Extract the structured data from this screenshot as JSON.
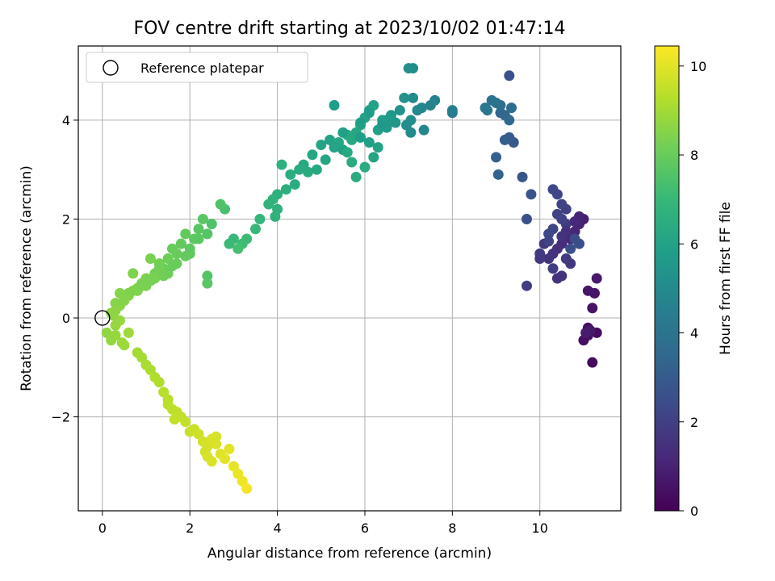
{
  "chart_data": {
    "type": "scatter",
    "title": "FOV centre drift starting at 2023/10/02 01:47:14",
    "xlabel": "Angular distance from reference (arcmin)",
    "ylabel": "Rotation from reference (arcmin)",
    "xlim": [
      -0.55,
      11.85
    ],
    "ylim": [
      -3.9,
      5.5
    ],
    "xticks": [
      0,
      2,
      4,
      6,
      8,
      10
    ],
    "yticks": [
      -2,
      0,
      2,
      4
    ],
    "xtick_labels": [
      "0",
      "2",
      "4",
      "6",
      "8",
      "10"
    ],
    "ytick_labels": [
      "−2",
      "0",
      "2",
      "4"
    ],
    "grid": true,
    "legend": {
      "location": "upper-left",
      "entries": [
        {
          "label": "Reference platepar",
          "marker": "open-circle",
          "color": "#000000"
        }
      ]
    },
    "reference_point": {
      "x": 0,
      "y": 0
    },
    "colorbar": {
      "label": "Hours from first FF file",
      "range": [
        0,
        10.45
      ],
      "ticks": [
        0,
        2,
        4,
        6,
        8,
        10
      ],
      "tick_labels": [
        "0",
        "2",
        "4",
        "6",
        "8",
        "10"
      ],
      "colormap": "viridis"
    },
    "colormap_stops": [
      "#440154",
      "#482878",
      "#3e4989",
      "#31688e",
      "#26828e",
      "#1f9e89",
      "#35b779",
      "#6ece58",
      "#b5de2b",
      "#fde725"
    ],
    "series": [
      {
        "x": [
          11.2,
          11.3,
          11.1,
          11.0,
          11.1,
          11.2,
          11.25,
          11.1,
          11.15,
          11.3,
          11.05
        ],
        "y": [
          -0.9,
          -0.3,
          -0.2,
          -0.45,
          -0.35,
          0.2,
          0.5,
          0.55,
          -0.25,
          0.8,
          -0.3
        ],
        "c": [
          0.3,
          0.35,
          0.4,
          0.45,
          0.5,
          0.55,
          0.6,
          0.65,
          0.7,
          0.75,
          0.8
        ]
      },
      {
        "x": [
          11.0,
          10.9,
          10.8,
          10.7,
          10.5,
          10.4,
          10.3,
          10.2,
          10.1,
          10.0,
          10.6,
          10.5,
          10.4,
          10.3,
          10.2,
          10.8,
          10.9,
          10.7,
          10.6,
          10.5,
          10.4,
          10.3,
          10.6,
          10.7,
          10.5,
          10.4,
          10.3,
          10.2,
          10.9,
          10.6,
          10.5,
          10.8,
          10.0,
          9.7
        ],
        "y": [
          2.0,
          1.9,
          1.75,
          1.6,
          1.5,
          1.4,
          1.3,
          1.2,
          1.5,
          1.3,
          1.9,
          2.0,
          2.1,
          1.8,
          1.7,
          1.6,
          1.5,
          1.4,
          2.2,
          2.3,
          2.5,
          2.6,
          1.2,
          1.1,
          0.85,
          0.8,
          1.0,
          1.55,
          2.05,
          1.75,
          1.65,
          1.95,
          1.2,
          0.65
        ],
        "c": [
          0.9,
          1.0,
          1.1,
          1.2,
          1.3,
          1.4,
          1.5,
          1.6,
          1.7,
          1.8,
          1.9,
          2.0,
          2.1,
          2.2,
          2.3,
          2.4,
          2.5,
          2.6,
          2.0,
          2.1,
          2.2,
          2.3,
          1.8,
          1.7,
          1.6,
          1.5,
          1.9,
          2.1,
          1.0,
          1.4,
          1.6,
          1.2,
          1.75,
          1.9
        ]
      },
      {
        "x": [
          9.7,
          9.8,
          9.6,
          9.4,
          9.3,
          9.2,
          9.0,
          9.05,
          9.1,
          9.2,
          9.3,
          9.35,
          9.1,
          9.0,
          8.9,
          8.8
        ],
        "y": [
          2.0,
          2.5,
          2.85,
          3.55,
          3.65,
          3.6,
          3.25,
          2.9,
          4.15,
          4.1,
          4.0,
          4.25,
          4.3,
          4.35,
          4.4,
          4.2
        ],
        "c": [
          2.6,
          2.7,
          2.8,
          2.9,
          3.0,
          3.1,
          3.2,
          3.3,
          3.4,
          3.5,
          3.6,
          3.7,
          3.8,
          3.9,
          4.0,
          4.1
        ]
      },
      {
        "x": [
          9.3,
          8.75,
          8.0,
          8.0,
          7.6,
          7.5,
          7.3,
          7.2,
          7.1,
          7.1,
          7.0,
          6.9,
          6.8,
          6.7,
          6.6,
          6.5,
          6.4,
          6.3,
          6.2,
          6.1,
          6.0,
          5.9,
          5.8,
          5.7,
          5.6,
          7.35,
          7.05,
          6.95,
          7.05
        ],
        "y": [
          4.9,
          4.25,
          4.15,
          4.2,
          4.4,
          4.3,
          4.25,
          4.2,
          4.45,
          5.05,
          5.05,
          4.45,
          4.2,
          3.95,
          4.1,
          3.85,
          4.0,
          3.8,
          4.3,
          4.2,
          4.05,
          3.9,
          3.75,
          3.6,
          3.7,
          3.8,
          3.75,
          3.9,
          4.0
        ],
        "c": [
          2.6,
          4.2,
          4.4,
          4.5,
          4.6,
          4.7,
          4.8,
          4.9,
          5.0,
          5.1,
          5.2,
          5.3,
          5.4,
          5.5,
          5.6,
          5.7,
          5.8,
          5.9,
          6.0,
          6.05,
          6.1,
          6.15,
          6.2,
          6.25,
          6.3,
          4.8,
          5.0,
          5.1,
          5.2
        ]
      },
      {
        "x": [
          5.3,
          5.5,
          5.2,
          5.0,
          4.8,
          4.6,
          4.5,
          4.3,
          4.1,
          4.0,
          3.9,
          3.8,
          3.6,
          3.5,
          3.3,
          3.2,
          3.1,
          3.0,
          2.9,
          5.9,
          6.1,
          6.3,
          6.2,
          5.4,
          5.6,
          5.7,
          5.8,
          6.0,
          6.4,
          6.5,
          6.1,
          5.9,
          5.5,
          5.3,
          5.1,
          4.9,
          4.7,
          4.4,
          4.2,
          4.0,
          3.95
        ],
        "y": [
          4.3,
          3.4,
          3.6,
          3.5,
          3.3,
          3.1,
          3.0,
          2.9,
          3.1,
          2.5,
          2.4,
          2.3,
          2.0,
          1.8,
          1.6,
          1.5,
          1.4,
          1.6,
          1.5,
          3.65,
          3.55,
          3.45,
          3.25,
          3.55,
          3.35,
          3.15,
          2.85,
          3.05,
          3.9,
          4.0,
          4.15,
          3.95,
          3.75,
          3.45,
          3.2,
          3.0,
          2.95,
          2.7,
          2.6,
          2.2,
          2.05
        ],
        "c": [
          5.8,
          5.9,
          6.0,
          6.1,
          6.2,
          6.3,
          6.4,
          6.5,
          6.6,
          6.6,
          6.7,
          6.8,
          6.9,
          7.0,
          7.1,
          7.2,
          7.3,
          7.0,
          7.1,
          5.8,
          5.9,
          6.0,
          6.1,
          6.2,
          6.3,
          6.35,
          6.4,
          6.45,
          5.6,
          5.7,
          5.75,
          5.85,
          5.95,
          6.05,
          6.15,
          6.25,
          6.35,
          6.45,
          6.55,
          6.65,
          6.75
        ]
      },
      {
        "x": [
          2.8,
          2.7,
          2.5,
          2.4,
          2.3,
          2.2,
          2.1,
          2.0,
          1.9,
          1.8,
          1.7,
          1.6,
          1.5,
          1.4,
          1.3,
          1.2,
          1.1,
          1.0,
          0.9,
          0.8,
          0.7,
          0.6,
          0.5,
          0.4,
          0.3,
          0.2,
          2.4,
          2.4,
          2.0,
          1.8,
          1.7,
          1.5,
          1.3,
          1.2,
          1.0,
          0.8,
          0.6,
          0.5,
          2.2,
          1.9,
          1.6,
          1.4,
          1.1,
          0.9,
          0.7,
          0.4,
          0.3,
          0.25
        ],
        "y": [
          2.2,
          2.3,
          1.9,
          1.7,
          2.0,
          1.8,
          1.6,
          1.4,
          1.7,
          1.5,
          1.3,
          1.4,
          1.2,
          1.0,
          1.1,
          0.9,
          1.2,
          0.8,
          0.7,
          0.6,
          0.9,
          0.5,
          0.4,
          0.5,
          0.3,
          0.1,
          0.85,
          0.7,
          1.3,
          1.5,
          1.1,
          0.9,
          1.0,
          0.8,
          0.65,
          0.55,
          0.45,
          0.35,
          1.6,
          1.25,
          1.05,
          0.85,
          0.75,
          0.65,
          0.55,
          0.25,
          0.15,
          0.05
        ],
        "c": [
          7.4,
          7.5,
          7.5,
          7.6,
          7.7,
          7.7,
          7.8,
          7.8,
          7.9,
          7.9,
          8.0,
          8.0,
          8.1,
          8.1,
          8.2,
          8.2,
          8.3,
          8.3,
          8.3,
          8.4,
          8.4,
          8.4,
          8.5,
          8.5,
          8.5,
          8.6,
          7.6,
          7.7,
          7.8,
          7.9,
          8.0,
          8.1,
          8.2,
          8.3,
          8.35,
          8.4,
          8.45,
          8.5,
          7.75,
          7.95,
          8.05,
          8.15,
          8.25,
          8.3,
          8.4,
          8.55,
          8.6,
          8.65
        ]
      },
      {
        "x": [
          0.1,
          0.2,
          0.3,
          0.45,
          0.5,
          0.6,
          0.8,
          0.9,
          1.0,
          1.1,
          1.2,
          1.3,
          1.4,
          1.5,
          1.6,
          1.7,
          1.8,
          1.9,
          2.0,
          2.1,
          2.2,
          2.3,
          2.4,
          2.5,
          2.6,
          2.7,
          2.8,
          2.9,
          3.0,
          3.1,
          3.2,
          3.3,
          2.5,
          2.6,
          2.35,
          2.4,
          1.5,
          1.65,
          0.3,
          0.4
        ],
        "y": [
          -0.3,
          -0.45,
          -0.35,
          -0.5,
          -0.55,
          -0.3,
          -0.7,
          -0.8,
          -0.95,
          -1.05,
          -1.2,
          -1.3,
          -1.5,
          -1.65,
          -1.85,
          -1.9,
          -2.0,
          -2.1,
          -2.3,
          -2.25,
          -2.35,
          -2.5,
          -2.6,
          -2.45,
          -2.55,
          -2.75,
          -2.85,
          -2.65,
          -3.0,
          -3.15,
          -3.3,
          -3.45,
          -2.9,
          -2.4,
          -2.7,
          -2.8,
          -1.75,
          -2.05,
          -0.15,
          -0.05
        ],
        "c": [
          8.7,
          8.75,
          8.8,
          8.85,
          8.9,
          8.9,
          9.0,
          9.05,
          9.1,
          9.15,
          9.2,
          9.25,
          9.3,
          9.35,
          9.4,
          9.45,
          9.5,
          9.55,
          9.6,
          9.65,
          9.7,
          9.75,
          9.8,
          9.85,
          9.9,
          9.95,
          10.0,
          10.05,
          10.1,
          10.15,
          10.2,
          10.3,
          9.9,
          9.8,
          9.75,
          9.85,
          9.4,
          9.5,
          8.8,
          8.75
        ]
      }
    ]
  }
}
